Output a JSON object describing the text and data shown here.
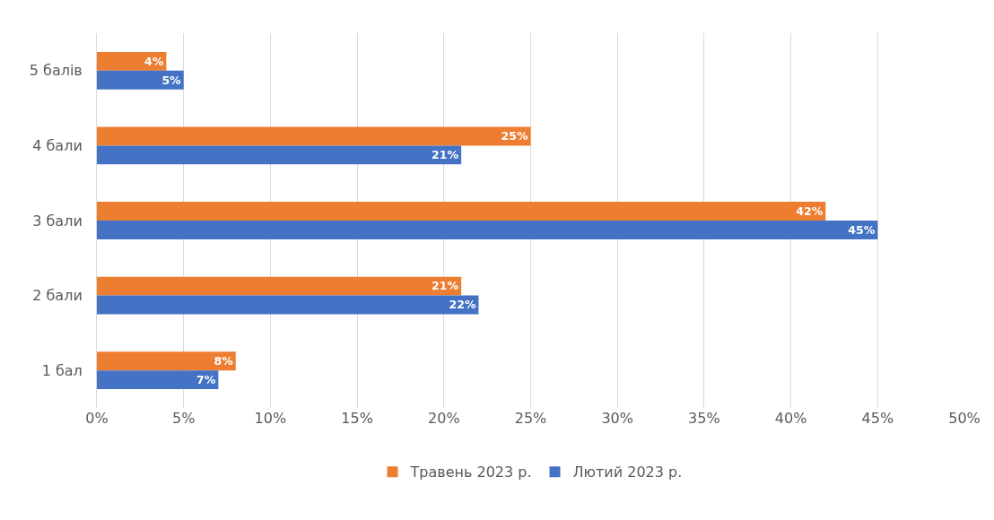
{
  "chart_data": {
    "type": "bar",
    "orientation": "horizontal",
    "categories": [
      "5 балів",
      "4 бали",
      "3 бали",
      "2 бали",
      "1 бал"
    ],
    "series": [
      {
        "name": "Травень 2023 р.",
        "color": "#ed7d31",
        "values": [
          4,
          25,
          42,
          21,
          8
        ],
        "value_labels": [
          "4%",
          "25%",
          "42%",
          "21%",
          "8%"
        ]
      },
      {
        "name": "Лютий 2023 р.",
        "color": "#4472c4",
        "values": [
          5,
          21,
          45,
          22,
          7
        ],
        "value_labels": [
          "5%",
          "21%",
          "45%",
          "22%",
          "7%"
        ]
      }
    ],
    "xlim": [
      0,
      50
    ],
    "xticks": [
      {
        "value": 0,
        "label": "0%"
      },
      {
        "value": 5,
        "label": "5%"
      },
      {
        "value": 10,
        "label": "10%"
      },
      {
        "value": 15,
        "label": "15%"
      },
      {
        "value": 20,
        "label": "20%"
      },
      {
        "value": 25,
        "label": "25%"
      },
      {
        "value": 30,
        "label": "30%"
      },
      {
        "value": 35,
        "label": "35%"
      },
      {
        "value": 40,
        "label": "40%"
      },
      {
        "value": 45,
        "label": "45%"
      },
      {
        "value": 50,
        "label": "50%"
      }
    ],
    "grid": "x",
    "legend": "bottom"
  }
}
